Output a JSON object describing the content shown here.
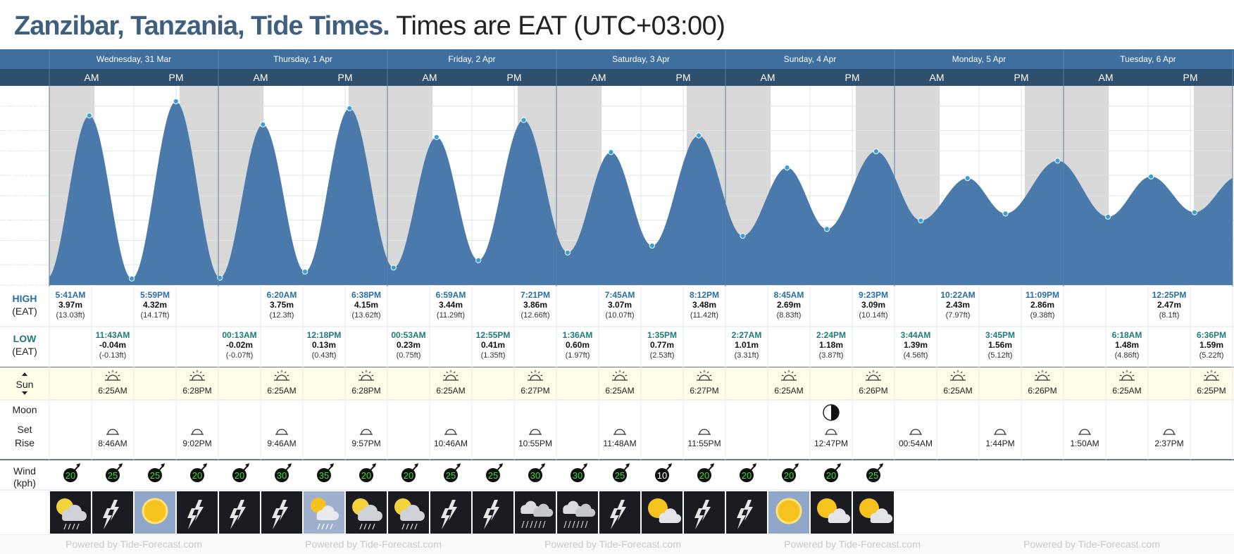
{
  "header": {
    "location": "Zanzibar, Tanzania, Tide Times.",
    "timezone": "Times are EAT (UTC+03:00)"
  },
  "days": [
    "Wednesday, 31 Mar",
    "Thursday, 1 Apr",
    "Friday, 2 Apr",
    "Saturday, 3 Apr",
    "Sunday, 4 Apr",
    "Monday, 5 Apr",
    "Tuesday, 6 Apr"
  ],
  "ampm": {
    "am": "AM",
    "pm": "PM"
  },
  "row_labels": {
    "high": "HIGH",
    "high_tz": "(EAT)",
    "low": "LOW",
    "low_tz": "(EAT)",
    "sun": "Sun",
    "moon": "Moon",
    "set": "Set",
    "rise": "Rise",
    "wind": "Wind",
    "wind_unit": "(kph)"
  },
  "y_ticks": [
    {
      "m": 4.2,
      "label": "4.2m (13.6ft)"
    },
    {
      "m": 3.6,
      "label": "3.6m (11.8ft)"
    },
    {
      "m": 3.1,
      "label": "3.1m (10ft)"
    },
    {
      "m": 2.5,
      "label": "2.5m (8.2ft)"
    },
    {
      "m": 2.0,
      "label": "2m (6.4ft)"
    },
    {
      "m": 1.4,
      "label": "1.4m (4.6ft)"
    },
    {
      "m": 0.9,
      "label": "0.9m (2.8ft)"
    },
    {
      "m": 0.3,
      "label": "0.3m (1ft)"
    },
    {
      "m": -0.2,
      "label": "-0.2m (-0.8ft)"
    }
  ],
  "chart_data": {
    "type": "area",
    "ylabel": "",
    "ylim": [
      -0.2,
      4.7
    ],
    "xlim_hours": [
      0,
      168
    ],
    "tides": [
      {
        "type": "high",
        "h": 5.683,
        "time": "5:41AM",
        "m": "3.97m",
        "ft": "(13.03ft)",
        "v": 3.97
      },
      {
        "type": "low",
        "h": 11.717,
        "time": "11:43AM",
        "m": "-0.04m",
        "ft": "(-0.13ft)",
        "v": -0.04
      },
      {
        "type": "high",
        "h": 17.983,
        "time": "5:59PM",
        "m": "4.32m",
        "ft": "(14.17ft)",
        "v": 4.32
      },
      {
        "type": "low",
        "h": 24.217,
        "time": "00:13AM",
        "m": "-0.02m",
        "ft": "(-0.07ft)",
        "v": -0.02
      },
      {
        "type": "high",
        "h": 30.333,
        "time": "6:20AM",
        "m": "3.75m",
        "ft": "(12.3ft)",
        "v": 3.75
      },
      {
        "type": "low",
        "h": 36.3,
        "time": "12:18PM",
        "m": "0.13m",
        "ft": "(0.43ft)",
        "v": 0.13
      },
      {
        "type": "high",
        "h": 42.633,
        "time": "6:38PM",
        "m": "4.15m",
        "ft": "(13.62ft)",
        "v": 4.15
      },
      {
        "type": "low",
        "h": 48.883,
        "time": "00:53AM",
        "m": "0.23m",
        "ft": "(0.75ft)",
        "v": 0.23
      },
      {
        "type": "high",
        "h": 54.983,
        "time": "6:59AM",
        "m": "3.44m",
        "ft": "(11.29ft)",
        "v": 3.44
      },
      {
        "type": "low",
        "h": 60.917,
        "time": "12:55PM",
        "m": "0.41m",
        "ft": "(1.35ft)",
        "v": 0.41
      },
      {
        "type": "high",
        "h": 67.35,
        "time": "7:21PM",
        "m": "3.86m",
        "ft": "(12.66ft)",
        "v": 3.86
      },
      {
        "type": "low",
        "h": 73.6,
        "time": "1:36AM",
        "m": "0.60m",
        "ft": "(1.97ft)",
        "v": 0.6
      },
      {
        "type": "high",
        "h": 79.75,
        "time": "7:45AM",
        "m": "3.07m",
        "ft": "(10.07ft)",
        "v": 3.07
      },
      {
        "type": "low",
        "h": 85.583,
        "time": "1:35PM",
        "m": "0.77m",
        "ft": "(2.53ft)",
        "v": 0.77
      },
      {
        "type": "high",
        "h": 92.2,
        "time": "8:12PM",
        "m": "3.48m",
        "ft": "(11.42ft)",
        "v": 3.48
      },
      {
        "type": "low",
        "h": 98.45,
        "time": "2:27AM",
        "m": "1.01m",
        "ft": "(3.31ft)",
        "v": 1.01
      },
      {
        "type": "high",
        "h": 104.75,
        "time": "8:45AM",
        "m": "2.69m",
        "ft": "(8.83ft)",
        "v": 2.69
      },
      {
        "type": "low",
        "h": 110.4,
        "time": "2:24PM",
        "m": "1.18m",
        "ft": "(3.87ft)",
        "v": 1.18
      },
      {
        "type": "high",
        "h": 117.383,
        "time": "9:23PM",
        "m": "3.09m",
        "ft": "(10.14ft)",
        "v": 3.09
      },
      {
        "type": "low",
        "h": 123.733,
        "time": "3:44AM",
        "m": "1.39m",
        "ft": "(4.56ft)",
        "v": 1.39
      },
      {
        "type": "high",
        "h": 130.367,
        "time": "10:22AM",
        "m": "2.43m",
        "ft": "(7.97ft)",
        "v": 2.43
      },
      {
        "type": "low",
        "h": 135.75,
        "time": "3:45PM",
        "m": "1.56m",
        "ft": "(5.12ft)",
        "v": 1.56
      },
      {
        "type": "high",
        "h": 143.15,
        "time": "11:09PM",
        "m": "2.86m",
        "ft": "(9.38ft)",
        "v": 2.86
      },
      {
        "type": "low",
        "h": 150.3,
        "time": "6:18AM",
        "m": "1.48m",
        "ft": "(4.86ft)",
        "v": 1.48
      },
      {
        "type": "high",
        "h": 156.417,
        "time": "12:25PM",
        "m": "2.47m",
        "ft": "(8.1ft)",
        "v": 2.47
      },
      {
        "type": "low",
        "h": 162.6,
        "time": "6:36PM",
        "m": "1.59m",
        "ft": "(5.22ft)",
        "v": 1.59
      }
    ],
    "night_shading": "grey",
    "area_color": "#4a7aab",
    "point_color": "#38a0d8"
  },
  "sun": [
    {
      "slot": 1,
      "time": "6:25AM",
      "kind": "rise"
    },
    {
      "slot": 3,
      "time": "6:28PM",
      "kind": "set"
    },
    {
      "slot": 5,
      "time": "6:25AM",
      "kind": "rise"
    },
    {
      "slot": 7,
      "time": "6:28PM",
      "kind": "set"
    },
    {
      "slot": 9,
      "time": "6:25AM",
      "kind": "rise"
    },
    {
      "slot": 11,
      "time": "6:27PM",
      "kind": "set"
    },
    {
      "slot": 13,
      "time": "6:25AM",
      "kind": "rise"
    },
    {
      "slot": 15,
      "time": "6:27PM",
      "kind": "set"
    },
    {
      "slot": 17,
      "time": "6:25AM",
      "kind": "rise"
    },
    {
      "slot": 19,
      "time": "6:26PM",
      "kind": "set"
    },
    {
      "slot": 21,
      "time": "6:25AM",
      "kind": "rise"
    },
    {
      "slot": 23,
      "time": "6:26PM",
      "kind": "set"
    },
    {
      "slot": 25,
      "time": "6:25AM",
      "kind": "rise"
    },
    {
      "slot": 27,
      "time": "6:25PM",
      "kind": "set"
    }
  ],
  "moon": [
    {
      "slot": 1,
      "time": "8:46AM"
    },
    {
      "slot": 3,
      "time": "9:02PM"
    },
    {
      "slot": 5,
      "time": "9:46AM"
    },
    {
      "slot": 7,
      "time": "9:57PM"
    },
    {
      "slot": 9,
      "time": "10:46AM"
    },
    {
      "slot": 11,
      "time": "10:55PM"
    },
    {
      "slot": 13,
      "time": "11:48AM"
    },
    {
      "slot": 15,
      "time": "11:55PM"
    },
    {
      "slot": 18,
      "time": "12:47PM"
    },
    {
      "slot": 20,
      "time": "00:54AM"
    },
    {
      "slot": 22,
      "time": "1:44PM"
    },
    {
      "slot": 24,
      "time": "1:50AM"
    },
    {
      "slot": 26,
      "time": "2:37PM"
    }
  ],
  "moon_phase": {
    "slot": 18,
    "icon": "half-moon-icon"
  },
  "wind": [
    "20",
    "25",
    "25",
    "20",
    "20",
    "30",
    "35",
    "20",
    "20",
    "25",
    "25",
    "30",
    "30",
    "25",
    "10",
    "20",
    "20",
    "20",
    "20",
    "25"
  ],
  "weather": [
    "cloudy",
    "storm",
    "sun",
    "storm",
    "storm",
    "storm",
    "sun-rain",
    "cloud-sun",
    "cloud-sun",
    "storm",
    "storm",
    "rain",
    "rain",
    "storm",
    "sun-cloud",
    "storm",
    "storm",
    "sun",
    "sun-cloud",
    "sun-cloud"
  ],
  "footer": {
    "watermark": "Powered by Tide-Forecast.com"
  },
  "colors": {
    "header_blue": "#3f6f9e",
    "subheader": "#2e4f6e",
    "area": "#4a7aab",
    "night": "#d8d8d8",
    "sun_row": "#fdfde8"
  }
}
